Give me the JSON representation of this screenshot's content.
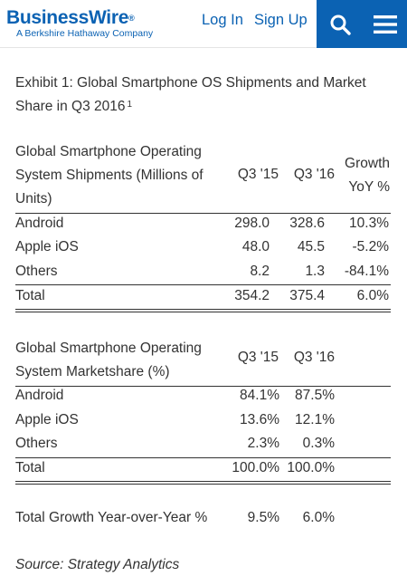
{
  "header": {
    "logo_text": "BusinessWire",
    "logo_reg": "®",
    "logo_sub": "A Berkshire Hathaway Company",
    "login_label": "Log In",
    "signup_label": "Sign Up",
    "search_icon": "search-icon",
    "menu_icon": "hamburger-menu-icon",
    "brand_color": "#0b62b3"
  },
  "exhibit": {
    "title": "Exhibit 1: Global Smartphone OS Shipments and Market Share in Q3 2016",
    "footnote_marker": "1"
  },
  "shipments_table": {
    "header_label": "Global Smartphone Operating System Shipments (Millions of Units)",
    "col_q315": "Q3 '15",
    "col_q316": "Q3 '16",
    "col_growth": "Growth YoY %",
    "rows": [
      {
        "name": "Android",
        "q315": "298.0",
        "q316": "328.6",
        "growth": "10.3%"
      },
      {
        "name": "Apple iOS",
        "q315": "48.0",
        "q316": "45.5",
        "growth": "-5.2%"
      },
      {
        "name": "Others",
        "q315": "8.2",
        "q316": "1.3",
        "growth": "-84.1%"
      }
    ],
    "total": {
      "name": "Total",
      "q315": "354.2",
      "q316": "375.4",
      "growth": "6.0%"
    }
  },
  "share_table": {
    "header_label": "Global Smartphone Operating System Marketshare (%)",
    "col_q315": "Q3 '15",
    "col_q316": "Q3 '16",
    "rows": [
      {
        "name": "Android",
        "q315": "84.1%",
        "q316": "87.5%"
      },
      {
        "name": "Apple iOS",
        "q315": "13.6%",
        "q316": "12.1%"
      },
      {
        "name": "Others",
        "q315": "2.3%",
        "q316": "0.3%"
      }
    ],
    "total": {
      "name": "Total",
      "q315": "100.0%",
      "q316": "100.0%"
    },
    "growth_row": {
      "name": "Total Growth Year-over-Year %",
      "q315": "9.5%",
      "q316": "6.0%"
    }
  },
  "source": "Source: Strategy Analytics"
}
